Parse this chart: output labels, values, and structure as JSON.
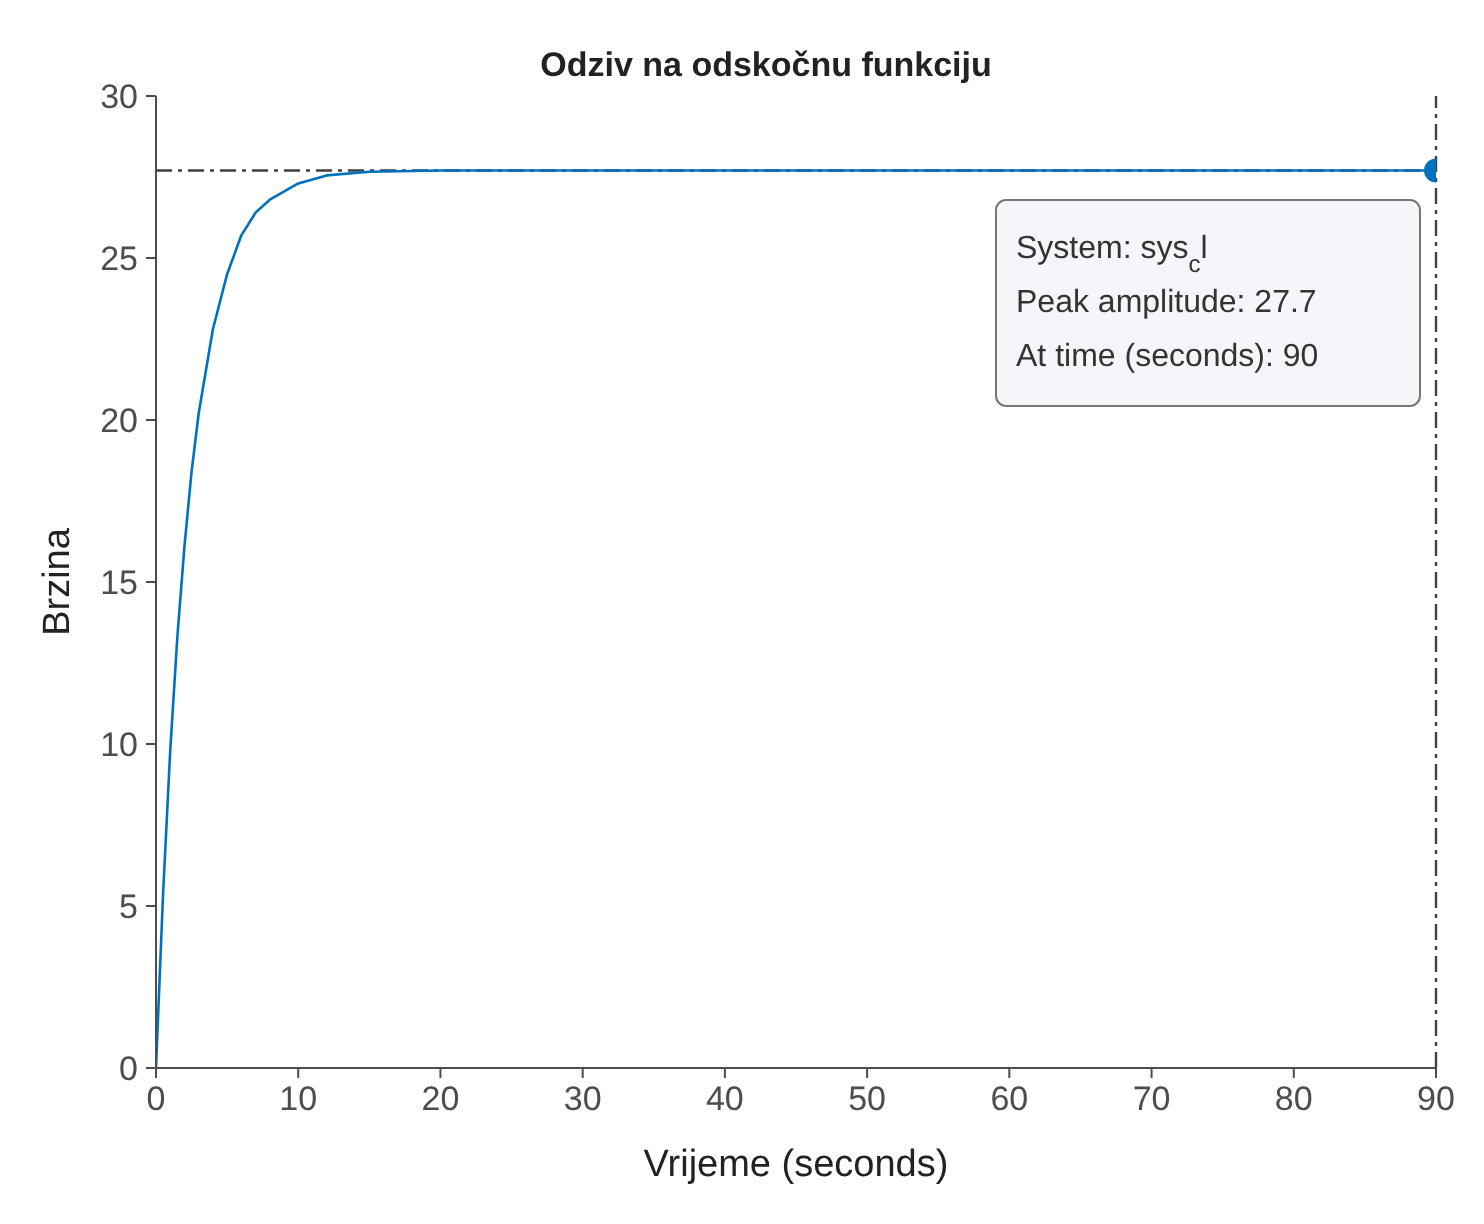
{
  "chart_data": {
    "type": "line",
    "title": "Odziv na odskočnu funkciju",
    "xlabel": "Vrijeme (seconds)",
    "ylabel": "Brzina",
    "xlim": [
      0,
      90
    ],
    "xticks": [
      0,
      10,
      20,
      30,
      40,
      50,
      60,
      70,
      80,
      90
    ],
    "ylim": [
      0,
      30
    ],
    "yticks": [
      0,
      5,
      10,
      15,
      20,
      25,
      30
    ],
    "grid": false,
    "legend": false,
    "series": [
      {
        "color": "#0072bd",
        "marker": "none",
        "x": [
          0,
          0.5,
          1,
          1.5,
          2,
          2.5,
          3,
          4,
          5,
          6,
          7,
          8,
          10,
          12,
          15,
          20,
          90
        ],
        "values": [
          0,
          5.4,
          9.8,
          13.3,
          16.1,
          18.4,
          20.2,
          22.8,
          24.5,
          25.7,
          26.4,
          26.8,
          27.3,
          27.55,
          27.66,
          27.7,
          27.7
        ]
      },
      {
        "type": "scatter",
        "color": "#0072bd",
        "marker": "circle",
        "x": [
          90
        ],
        "values": [
          27.7
        ]
      }
    ],
    "ref_lines": [
      {
        "axis": "y",
        "value": 27.7,
        "color": "#404040",
        "line_style": "dashdot"
      },
      {
        "axis": "x",
        "value": 90,
        "color": "#404040",
        "line_style": "dashdot"
      }
    ],
    "annotations": [
      "System: sys$_{c}$l\nPeak amplitude: 27.7\nAt time (seconds): 90"
    ]
  }
}
